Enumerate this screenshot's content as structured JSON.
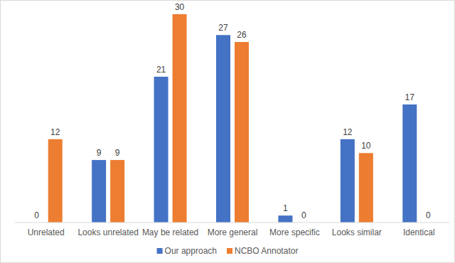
{
  "chart_data": {
    "type": "bar",
    "categories": [
      "Unrelated",
      "Looks unrelated",
      "May be related",
      "More general",
      "More specific",
      "Looks similar",
      "Identical"
    ],
    "series": [
      {
        "name": "Our approach",
        "color": "#4472c4",
        "values": [
          0,
          9,
          21,
          27,
          1,
          12,
          17
        ]
      },
      {
        "name": "NCBO Annotator",
        "color": "#ed7d31",
        "values": [
          12,
          9,
          30,
          26,
          0,
          10,
          0
        ]
      }
    ],
    "ylim": [
      0,
      30
    ],
    "grid": false,
    "legend": "bottom",
    "data_labels": true,
    "tick_labels": "x"
  }
}
